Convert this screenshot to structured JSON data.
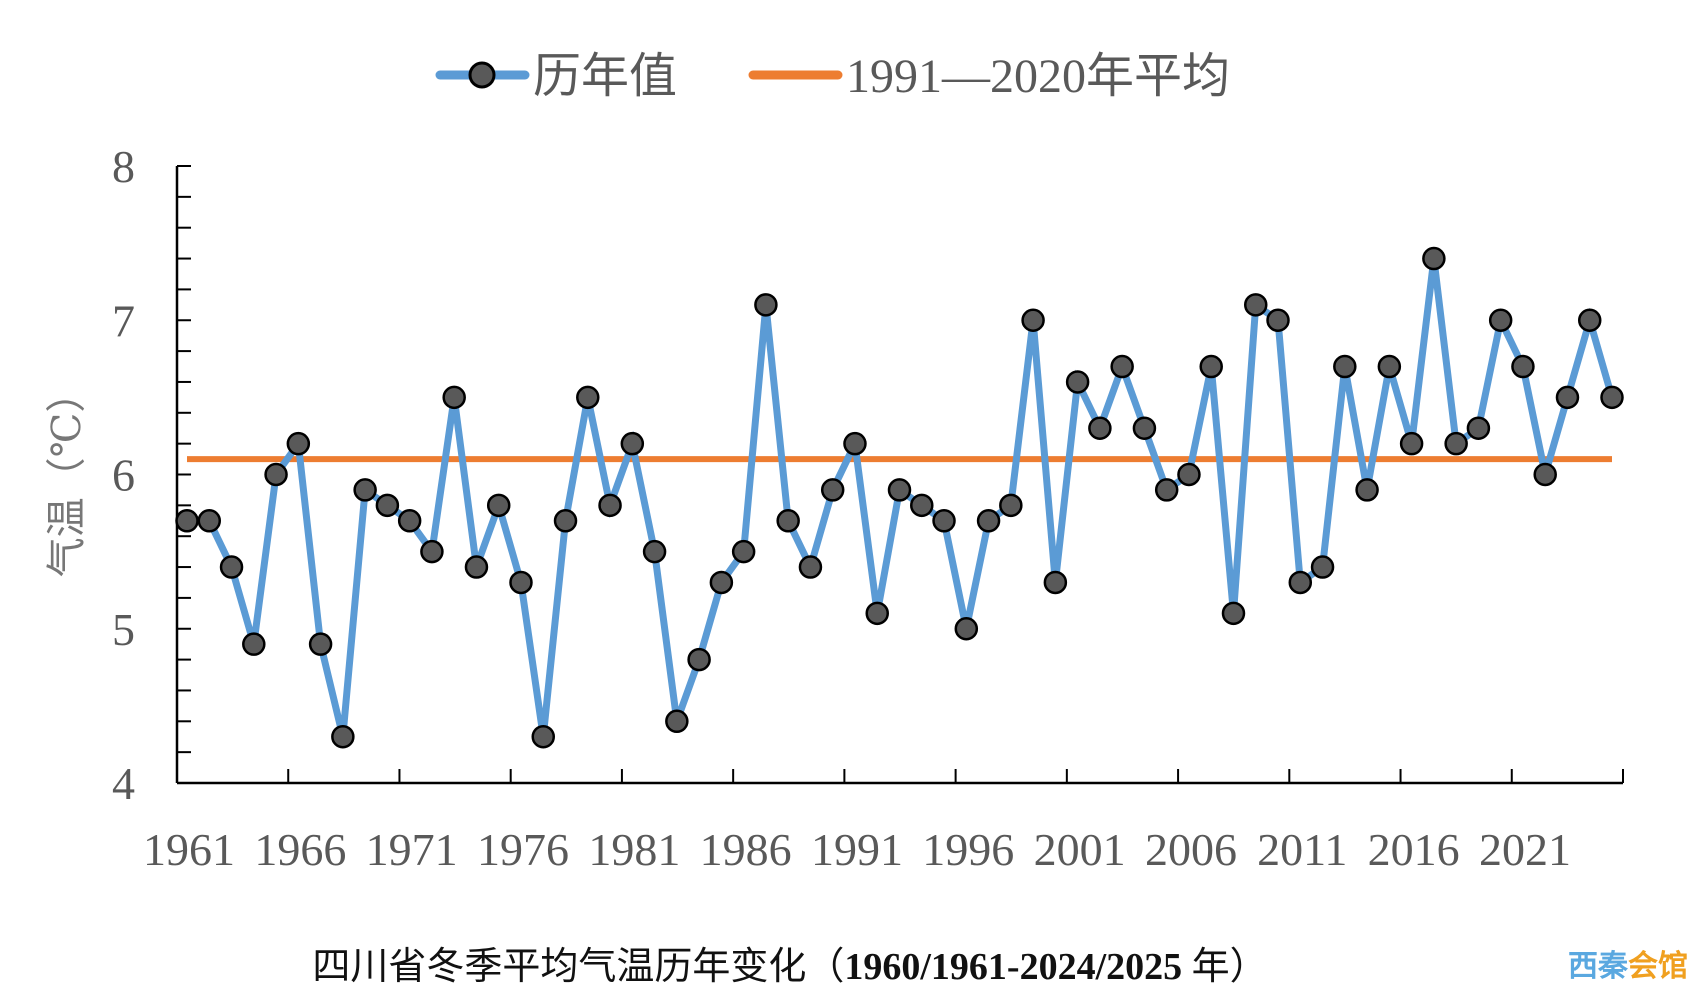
{
  "chart_data": {
    "type": "line",
    "title": "四川省冬季平均气温历年变化（1960/1961-2024/2025 年）",
    "title_prefix": "四川省冬季平均气温历年变化（",
    "title_bold": "1960/1961-2024/2025",
    "title_suffix": " 年）",
    "xlabel": "",
    "ylabel": "气温（℃）",
    "ylim": [
      4,
      8
    ],
    "yticks": [
      4,
      5,
      6,
      7,
      8
    ],
    "xlim": [
      1961,
      2025
    ],
    "xtick_labels": [
      "1961",
      "1966",
      "1971",
      "1976",
      "1981",
      "1986",
      "1991",
      "1996",
      "2001",
      "2006",
      "2011",
      "2016",
      "2021"
    ],
    "legend": [
      "历年值",
      "1991—2020年平均"
    ],
    "legend_position": "top",
    "grid": false,
    "x": [
      1961,
      1962,
      1963,
      1964,
      1965,
      1966,
      1967,
      1968,
      1969,
      1970,
      1971,
      1972,
      1973,
      1974,
      1975,
      1976,
      1977,
      1978,
      1979,
      1980,
      1981,
      1982,
      1983,
      1984,
      1985,
      1986,
      1987,
      1988,
      1989,
      1990,
      1991,
      1992,
      1993,
      1994,
      1995,
      1996,
      1997,
      1998,
      1999,
      2000,
      2001,
      2002,
      2003,
      2004,
      2005,
      2006,
      2007,
      2008,
      2009,
      2010,
      2011,
      2012,
      2013,
      2014,
      2015,
      2016,
      2017,
      2018,
      2019,
      2020,
      2021,
      2022,
      2023,
      2024,
      2025
    ],
    "series": [
      {
        "name": "历年值",
        "color": "#5b9bd5",
        "values": [
          5.7,
          5.7,
          5.4,
          4.9,
          6.0,
          6.2,
          4.9,
          4.3,
          5.9,
          5.8,
          5.7,
          5.5,
          6.5,
          5.4,
          5.8,
          5.3,
          4.3,
          5.7,
          6.5,
          5.8,
          6.2,
          5.5,
          4.4,
          4.8,
          5.3,
          5.5,
          7.1,
          5.7,
          5.4,
          5.9,
          6.2,
          5.1,
          5.9,
          5.8,
          5.7,
          5.0,
          5.7,
          5.8,
          7.0,
          5.3,
          6.6,
          6.3,
          6.7,
          6.3,
          5.9,
          6.0,
          6.7,
          5.1,
          7.1,
          7.0,
          5.3,
          5.4,
          6.7,
          5.9,
          6.7,
          6.2,
          7.4,
          6.2,
          6.3,
          7.0,
          6.7,
          6.0,
          6.5,
          7.0,
          6.5
        ]
      },
      {
        "name": "1991—2020年平均",
        "color": "#ed7d31",
        "value": 6.1
      }
    ]
  },
  "watermark": "西秦会馆",
  "marker_color": "#595959"
}
